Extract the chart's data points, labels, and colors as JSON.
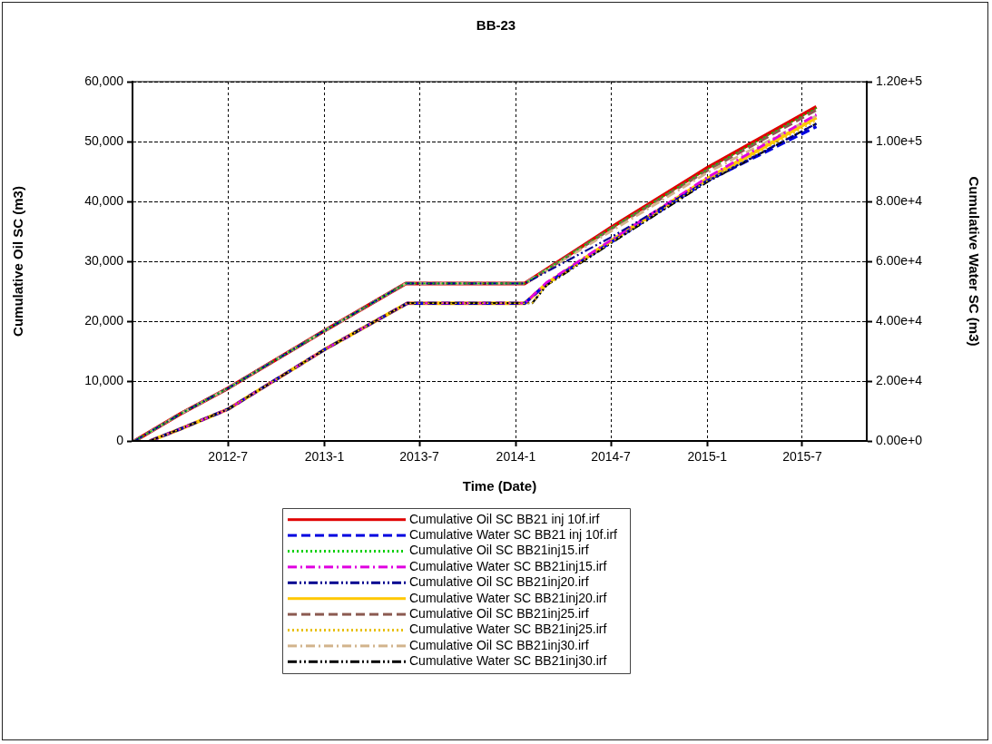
{
  "chart_data": {
    "type": "line",
    "title": "BB-23",
    "xlabel": "Time (Date)",
    "ylabel": "Cumulative Oil SC (m3)",
    "y2label": "Cumulative Water SC (m3)",
    "xlim": [
      "2012-01-01",
      "2015-11-01"
    ],
    "xticks": [
      {
        "value": "2012-07-01",
        "label": "2012-7"
      },
      {
        "value": "2013-01-01",
        "label": "2013-1"
      },
      {
        "value": "2013-07-01",
        "label": "2013-7"
      },
      {
        "value": "2014-01-01",
        "label": "2014-1"
      },
      {
        "value": "2014-07-01",
        "label": "2014-7"
      },
      {
        "value": "2015-01-01",
        "label": "2015-1"
      },
      {
        "value": "2015-07-01",
        "label": "2015-7"
      }
    ],
    "ylim": [
      0,
      60000
    ],
    "yticks": [
      0,
      {
        "value": 10000,
        "label": "10,000"
      },
      {
        "value": 20000,
        "label": "20,000"
      },
      {
        "value": 30000,
        "label": "30,000"
      },
      {
        "value": 40000,
        "label": "40,000"
      },
      {
        "value": 50000,
        "label": "50,000"
      },
      {
        "value": 60000,
        "label": "60,000"
      }
    ],
    "y2lim": [
      0,
      120000
    ],
    "y2ticks": [
      {
        "value": 0,
        "label": "0.00e+0"
      },
      {
        "value": 20000,
        "label": "2.00e+4"
      },
      {
        "value": 40000,
        "label": "4.00e+4"
      },
      {
        "value": 60000,
        "label": "6.00e+4"
      },
      {
        "value": 80000,
        "label": "8.00e+4"
      },
      {
        "value": 100000,
        "label": "1.00e+5"
      },
      {
        "value": 120000,
        "label": "1.20e+5"
      }
    ],
    "grid": true,
    "legend": "bottom",
    "marker": "none",
    "series": [
      {
        "name": "Cumulative Oil SC BB21 inj 10f.irf",
        "color": "#e00000",
        "line_style": "solid",
        "x": [
          "2012-01-05",
          "2012-04-01",
          "2012-07-01",
          "2013-01-01",
          "2013-06-05",
          "2014-01-18",
          "2014-07-01",
          "2015-01-01",
          "2015-07-28"
        ],
        "values": [
          0,
          4500,
          8800,
          18400,
          26300,
          26300,
          35600,
          45600,
          55800
        ]
      },
      {
        "name": "Cumulative Water SC BB21 inj 10f.irf",
        "color": "#0000e0",
        "line_style": "dashed",
        "axis": "y2",
        "x": [
          "2012-02-03",
          "2012-04-01",
          "2012-07-01",
          "2013-01-01",
          "2013-06-08",
          "2014-01-18",
          "2014-03-01",
          "2014-07-01",
          "2015-01-01",
          "2015-07-28"
        ],
        "values": [
          0,
          4000,
          10600,
          30500,
          46000,
          46000,
          52600,
          66300,
          86900,
          105000
        ]
      },
      {
        "name": "Cumulative Oil SC BB21inj15.irf",
        "color": "#00d000",
        "line_style": "dotted",
        "x": [
          "2012-01-05",
          "2012-04-01",
          "2012-07-01",
          "2013-01-01",
          "2013-06-05",
          "2014-01-18",
          "2014-07-01",
          "2015-01-01",
          "2015-07-28"
        ],
        "values": [
          0,
          4500,
          8800,
          18400,
          26300,
          26300,
          35500,
          45400,
          55600
        ]
      },
      {
        "name": "Cumulative Water SC BB21inj15.irf",
        "color": "#e000e0",
        "line_style": "dashdot",
        "axis": "y2",
        "x": [
          "2012-02-03",
          "2012-04-01",
          "2012-07-01",
          "2013-01-01",
          "2013-06-08",
          "2014-01-18",
          "2014-03-01",
          "2014-07-01",
          "2015-01-01",
          "2015-07-28"
        ],
        "values": [
          0,
          4000,
          10600,
          30500,
          46000,
          46000,
          53000,
          67000,
          88000,
          109000
        ]
      },
      {
        "name": "Cumulative Oil SC BB21inj20.irf",
        "color": "#000090",
        "line_style": "dashdotdot",
        "x": [
          "2012-01-05",
          "2012-04-01",
          "2012-07-01",
          "2013-01-01",
          "2013-06-05",
          "2014-01-18",
          "2014-07-01",
          "2015-01-01",
          "2015-07-28"
        ],
        "values": [
          0,
          4500,
          8800,
          18400,
          26300,
          26300,
          34000,
          43400,
          53000
        ]
      },
      {
        "name": "Cumulative Water SC BB21inj20.irf",
        "color": "#ffc800",
        "line_style": "solid",
        "axis": "y2",
        "x": [
          "2012-02-03",
          "2012-04-01",
          "2012-07-01",
          "2013-01-01",
          "2013-06-08",
          "2014-01-18",
          "2014-03-01",
          "2014-07-01",
          "2015-01-01",
          "2015-07-28"
        ],
        "values": [
          0,
          4000,
          10600,
          30500,
          46000,
          46000,
          52600,
          66800,
          87600,
          108000
        ]
      },
      {
        "name": "Cumulative Oil SC BB21inj25.irf",
        "color": "#8b5a50",
        "line_style": "dashed",
        "x": [
          "2012-01-05",
          "2012-04-01",
          "2012-07-01",
          "2013-01-01",
          "2013-06-05",
          "2014-01-18",
          "2014-07-01",
          "2015-01-01",
          "2015-07-28"
        ],
        "values": [
          0,
          4500,
          8800,
          18400,
          26300,
          26300,
          35400,
          45200,
          55300
        ]
      },
      {
        "name": "Cumulative Water SC BB21inj25.irf",
        "color": "#e8c000",
        "line_style": "dotted",
        "axis": "y2",
        "x": [
          "2012-02-03",
          "2012-04-01",
          "2012-07-01",
          "2013-01-01",
          "2013-06-08",
          "2014-02-01",
          "2014-03-01",
          "2014-07-01",
          "2015-01-01",
          "2015-07-28"
        ],
        "values": [
          0,
          4000,
          10600,
          30500,
          46000,
          46000,
          52000,
          66300,
          86900,
          107000
        ]
      },
      {
        "name": "Cumulative Oil SC BB21inj30.irf",
        "color": "#d2b48c",
        "line_style": "dashdot",
        "x": [
          "2012-01-05",
          "2012-04-01",
          "2012-07-01",
          "2013-01-01",
          "2013-06-05",
          "2014-01-18",
          "2014-07-01",
          "2015-01-01",
          "2015-07-28"
        ],
        "values": [
          0,
          4500,
          8800,
          18400,
          26300,
          26300,
          35000,
          44800,
          54300
        ]
      },
      {
        "name": "Cumulative Water SC BB21inj30.irf",
        "color": "#000000",
        "line_style": "dashdotdot",
        "axis": "y2",
        "x": [
          "2012-02-03",
          "2012-04-01",
          "2012-07-01",
          "2013-01-01",
          "2013-06-08",
          "2014-02-01",
          "2014-03-01",
          "2014-07-01",
          "2015-01-01",
          "2015-07-28"
        ],
        "values": [
          0,
          4000,
          10600,
          30500,
          46000,
          46000,
          52000,
          66000,
          86500,
          106000
        ]
      }
    ]
  }
}
